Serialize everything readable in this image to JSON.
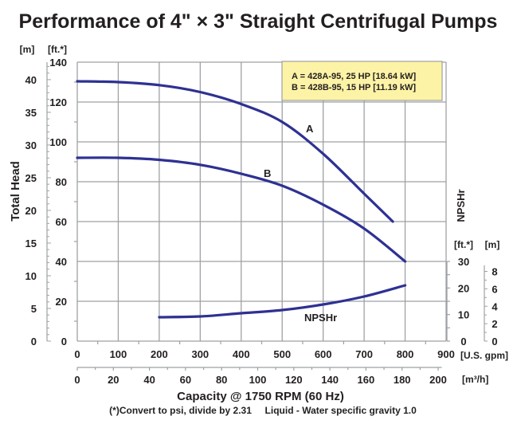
{
  "chart_data": {
    "type": "line",
    "title": "Performance of 4\" × 3\" Straight Centrifugal Pumps",
    "xlabel": "Capacity @ 1750 RPM (60 Hz)",
    "ylabel": "Total Head",
    "note": "(*)Convert to psi, divide by 2.31     Liquid - Water specific gravity 1.0",
    "x_axis": {
      "unit": "[U.S. gpm]",
      "range": [
        0,
        900
      ],
      "ticks": [
        0,
        100,
        200,
        300,
        400,
        500,
        600,
        700,
        800,
        900
      ]
    },
    "x2_axis": {
      "unit": "[m³/h]",
      "range": [
        0,
        204.4
      ],
      "ticks": [
        0,
        20,
        40,
        60,
        80,
        100,
        120,
        140,
        160,
        180,
        200
      ]
    },
    "y_axis": {
      "unit": "[ft.*]",
      "range": [
        0,
        140
      ],
      "ticks": [
        0,
        20,
        40,
        60,
        80,
        100,
        120,
        140
      ]
    },
    "y_axis_m": {
      "unit": "[m]",
      "range": [
        0,
        42.67
      ],
      "ticks": [
        0,
        5,
        10,
        15,
        20,
        25,
        30,
        35,
        40
      ]
    },
    "npshr_axis": {
      "label": "NPSHr",
      "unit_ft": "[ft.*]",
      "unit_m": "[m]",
      "ticks_ft": [
        0,
        10,
        20,
        30
      ],
      "ticks_m": [
        0,
        2,
        4,
        6,
        8
      ],
      "range_ft": [
        0,
        30
      ]
    },
    "grid": true,
    "legend": {
      "placement": "top-right",
      "lines": [
        "A = 428A-95, 25 HP [18.64 kW]",
        "B = 428B-95, 15 HP [11.19 kW]"
      ],
      "background": "#fdf3a6"
    },
    "colors": {
      "curve": "#2e3192",
      "grid": "#9ea1a4",
      "text": "#231f20"
    },
    "series": [
      {
        "name": "A",
        "axis": "head_ft",
        "x": [
          0,
          100,
          200,
          300,
          400,
          500,
          600,
          700,
          770
        ],
        "y": [
          130.4,
          130,
          128.5,
          125,
          119,
          110,
          94,
          74,
          60
        ]
      },
      {
        "name": "B",
        "axis": "head_ft",
        "x": [
          0,
          100,
          200,
          300,
          400,
          500,
          600,
          700,
          800
        ],
        "y": [
          92,
          92,
          91,
          88.5,
          84,
          78,
          68.5,
          56.5,
          40
        ]
      },
      {
        "name": "NPSHr",
        "axis": "npshr_ft",
        "x": [
          200,
          300,
          400,
          500,
          600,
          700,
          800
        ],
        "y": [
          9,
          9.3,
          10.5,
          11.7,
          13.8,
          16.8,
          21
        ]
      }
    ]
  }
}
